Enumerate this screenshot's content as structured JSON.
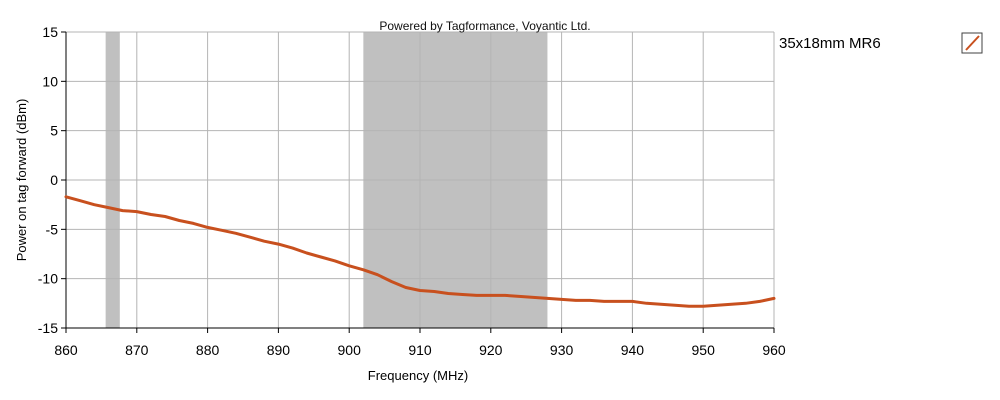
{
  "chart_data": {
    "type": "line",
    "watermark": "Powered by Tagformance, Voyantic Ltd.",
    "xlabel": "Frequency (MHz)",
    "ylabel": "Power on tag forward (dBm)",
    "xlim": [
      860,
      960
    ],
    "ylim": [
      -15,
      15
    ],
    "xticks": [
      860,
      870,
      880,
      890,
      900,
      910,
      920,
      930,
      940,
      950,
      960
    ],
    "yticks": [
      15,
      10,
      5,
      0,
      -5,
      -10,
      -15
    ],
    "grid": true,
    "legend_position": "top-right, outside plot",
    "shaded_bands": [
      {
        "from": 865.6,
        "to": 867.6,
        "color": "#c0c0c0"
      },
      {
        "from": 902,
        "to": 928,
        "color": "#c0c0c0"
      }
    ],
    "series": [
      {
        "name": "35x18mm MR6",
        "color": "#c8501e",
        "x": [
          860,
          862,
          864,
          866,
          868,
          870,
          872,
          874,
          876,
          878,
          880,
          882,
          884,
          886,
          888,
          890,
          892,
          894,
          896,
          898,
          900,
          902,
          904,
          906,
          908,
          910,
          912,
          914,
          916,
          918,
          920,
          922,
          924,
          926,
          928,
          930,
          932,
          934,
          936,
          938,
          940,
          942,
          944,
          946,
          948,
          950,
          952,
          954,
          956,
          958,
          960
        ],
        "y": [
          -1.7,
          -2.1,
          -2.5,
          -2.8,
          -3.1,
          -3.2,
          -3.5,
          -3.7,
          -4.1,
          -4.4,
          -4.8,
          -5.1,
          -5.4,
          -5.8,
          -6.2,
          -6.5,
          -6.9,
          -7.4,
          -7.8,
          -8.2,
          -8.7,
          -9.1,
          -9.6,
          -10.3,
          -10.9,
          -11.2,
          -11.3,
          -11.5,
          -11.6,
          -11.7,
          -11.7,
          -11.7,
          -11.8,
          -11.9,
          -12.0,
          -12.1,
          -12.2,
          -12.2,
          -12.3,
          -12.3,
          -12.3,
          -12.5,
          -12.6,
          -12.7,
          -12.8,
          -12.8,
          -12.7,
          -12.6,
          -12.5,
          -12.3,
          -12.0
        ]
      }
    ]
  }
}
